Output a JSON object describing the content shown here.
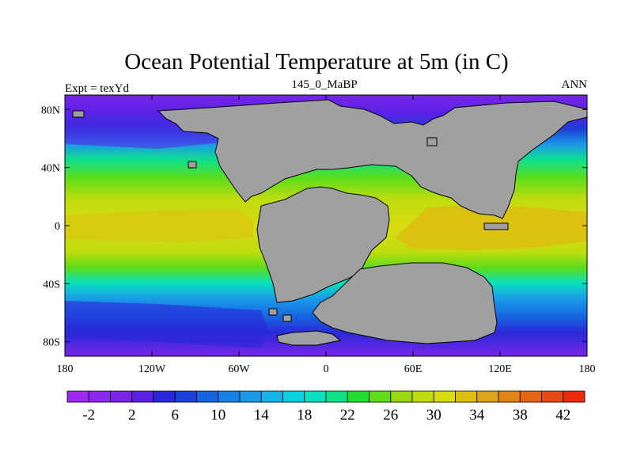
{
  "plot": {
    "title": "Ocean Potential Temperature at 5m (in C)",
    "left_label": "Expt = texYd",
    "center_label": "145_0_MaBP",
    "right_label": "ANN"
  },
  "map": {
    "longitude_range": [
      -180,
      180
    ],
    "latitude_range": [
      -90,
      90
    ],
    "x_ticks": [
      {
        "value": -180,
        "label": "180"
      },
      {
        "value": -120,
        "label": "120W"
      },
      {
        "value": -60,
        "label": "60W"
      },
      {
        "value": 0,
        "label": "0"
      },
      {
        "value": 60,
        "label": "60E"
      },
      {
        "value": 120,
        "label": "120E"
      },
      {
        "value": 180,
        "label": "180"
      }
    ],
    "y_ticks": [
      {
        "value": 80,
        "label": "80N"
      },
      {
        "value": 40,
        "label": "40N"
      },
      {
        "value": 0,
        "label": "0"
      },
      {
        "value": -40,
        "label": "40S"
      },
      {
        "value": -80,
        "label": "80S"
      }
    ],
    "land_color": "#a0a0a0",
    "colorbar": {
      "levels": [
        -4,
        -2,
        0,
        2,
        4,
        6,
        8,
        10,
        12,
        14,
        16,
        18,
        20,
        22,
        24,
        26,
        28,
        30,
        32,
        34,
        36,
        38,
        40,
        42
      ],
      "labels": [
        "-2",
        "2",
        "6",
        "10",
        "14",
        "18",
        "22",
        "26",
        "30",
        "34",
        "38",
        "42"
      ],
      "colors": [
        "#9e2af0",
        "#8c28ea",
        "#7826e6",
        "#5a20e6",
        "#2a28d8",
        "#1e3ed8",
        "#1664e0",
        "#1a80e6",
        "#1a9ae8",
        "#14b4e8",
        "#0ad0e0",
        "#0ae0c0",
        "#10e08a",
        "#22dc30",
        "#60dc18",
        "#9ad812",
        "#c0dc10",
        "#d8dc10",
        "#dcc010",
        "#dca418",
        "#e08418",
        "#e46614",
        "#e84a14",
        "#ec2a10"
      ]
    }
  }
}
